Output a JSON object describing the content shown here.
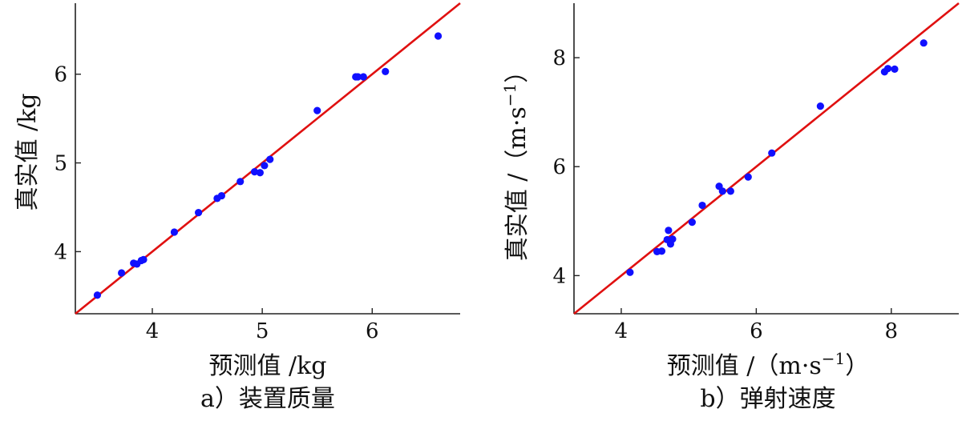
{
  "chart_data": [
    {
      "type": "scatter",
      "panel": "a)",
      "caption": "a）装置质量",
      "xlabel": "预测值 /kg",
      "ylabel": "真实值 /kg",
      "xlim": [
        3.3,
        6.8
      ],
      "ylim": [
        3.3,
        6.8
      ],
      "xticks": [
        4,
        5,
        6
      ],
      "yticks": [
        4,
        5,
        6
      ],
      "grid": false,
      "marker_color": "#1010ff",
      "line_color": "#e01010",
      "points": [
        [
          3.5,
          3.51
        ],
        [
          3.72,
          3.76
        ],
        [
          3.83,
          3.87
        ],
        [
          3.86,
          3.86
        ],
        [
          3.9,
          3.9
        ],
        [
          3.92,
          3.91
        ],
        [
          4.2,
          4.22
        ],
        [
          4.42,
          4.44
        ],
        [
          4.59,
          4.6
        ],
        [
          4.63,
          4.63
        ],
        [
          4.8,
          4.79
        ],
        [
          4.93,
          4.9
        ],
        [
          4.98,
          4.89
        ],
        [
          5.02,
          4.97
        ],
        [
          5.07,
          5.04
        ],
        [
          5.5,
          5.59
        ],
        [
          5.85,
          5.97
        ],
        [
          5.87,
          5.97
        ],
        [
          5.92,
          5.97
        ],
        [
          6.12,
          6.03
        ],
        [
          6.6,
          6.43
        ]
      ],
      "reference_line": [
        [
          3.3,
          3.3
        ],
        [
          6.8,
          6.8
        ]
      ]
    },
    {
      "type": "scatter",
      "panel": "b)",
      "caption": "b）弹射速度",
      "xlabel": "预测值 /（m·s",
      "xlabel_sup": "−1",
      "xlabel_end": "）",
      "ylabel": "真实值 /（m·s",
      "ylabel_sup": "−1",
      "ylabel_end": "）",
      "xlim": [
        3.3,
        9.0
      ],
      "ylim": [
        3.3,
        9.0
      ],
      "xticks": [
        4,
        6,
        8
      ],
      "yticks": [
        4,
        6,
        8
      ],
      "grid": false,
      "marker_color": "#1010ff",
      "line_color": "#e01010",
      "points": [
        [
          4.13,
          4.06
        ],
        [
          4.53,
          4.44
        ],
        [
          4.6,
          4.45
        ],
        [
          4.68,
          4.66
        ],
        [
          4.7,
          4.83
        ],
        [
          4.73,
          4.58
        ],
        [
          4.76,
          4.67
        ],
        [
          5.05,
          4.98
        ],
        [
          5.2,
          5.29
        ],
        [
          5.45,
          5.64
        ],
        [
          5.5,
          5.55
        ],
        [
          5.62,
          5.55
        ],
        [
          5.88,
          5.81
        ],
        [
          6.23,
          6.25
        ],
        [
          6.95,
          7.11
        ],
        [
          7.9,
          7.74
        ],
        [
          7.95,
          7.8
        ],
        [
          8.05,
          7.79
        ],
        [
          8.48,
          8.27
        ]
      ],
      "reference_line": [
        [
          3.3,
          3.3
        ],
        [
          9.0,
          9.0
        ]
      ]
    }
  ]
}
